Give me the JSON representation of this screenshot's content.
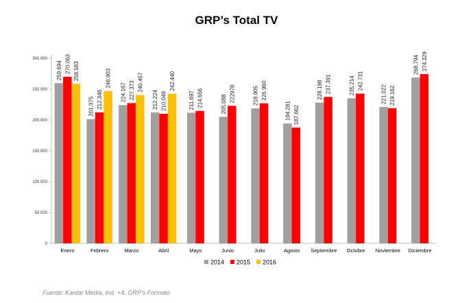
{
  "chart_data": {
    "type": "bar",
    "title": "GRP’s Total TV",
    "source": "Fuente: Kantar Media. Ind. +4. GRP's Formato",
    "categories": [
      "Enero",
      "Febrero",
      "Marzo",
      "Abril",
      "Mayo",
      "Junio",
      "Julio",
      "Agosto",
      "Septiembre",
      "Octubre",
      "Noviembre",
      "Diciembre"
    ],
    "ylim": [
      0,
      300000
    ],
    "yticks": [
      0,
      50000,
      100000,
      150000,
      200000,
      250000,
      300000
    ],
    "ytick_labels": [
      "0",
      "50.000",
      "100.000",
      "150.000",
      "200.000",
      "250.000",
      "300.000"
    ],
    "legend_position": "bottom",
    "grid": false,
    "series": [
      {
        "name": "2014",
        "color": "#a0a0a0",
        "values": [
          259694,
          201375,
          224167,
          212224,
          211697,
          205088,
          218905,
          194281,
          228198,
          235214,
          221022,
          268794
        ],
        "labels": [
          "259.694",
          "201.375",
          "224.167",
          "212.224",
          "211.697",
          "205.088",
          "218.905",
          "194.281",
          "228.198",
          "235.214",
          "221.022",
          "268.794"
        ]
      },
      {
        "name": "2015",
        "color": "#ff0000",
        "values": [
          270063,
          212346,
          227373,
          210049,
          214656,
          222978,
          226960,
          187662,
          237391,
          242731,
          219162,
          274329
        ],
        "labels": [
          "270.063",
          "212.346",
          "227.373",
          "210.049",
          "214.656",
          "222978",
          "226.960",
          "187.662",
          "237.391",
          "242.731",
          "219.162",
          "274.329"
        ]
      },
      {
        "name": "2016",
        "color": "#ffc000",
        "values": [
          258583,
          246903,
          240457,
          242440,
          null,
          null,
          null,
          null,
          null,
          null,
          null,
          null
        ],
        "labels": [
          "258.583",
          "246.903",
          "240.457",
          "242.440",
          null,
          null,
          null,
          null,
          null,
          null,
          null,
          null
        ]
      }
    ]
  }
}
